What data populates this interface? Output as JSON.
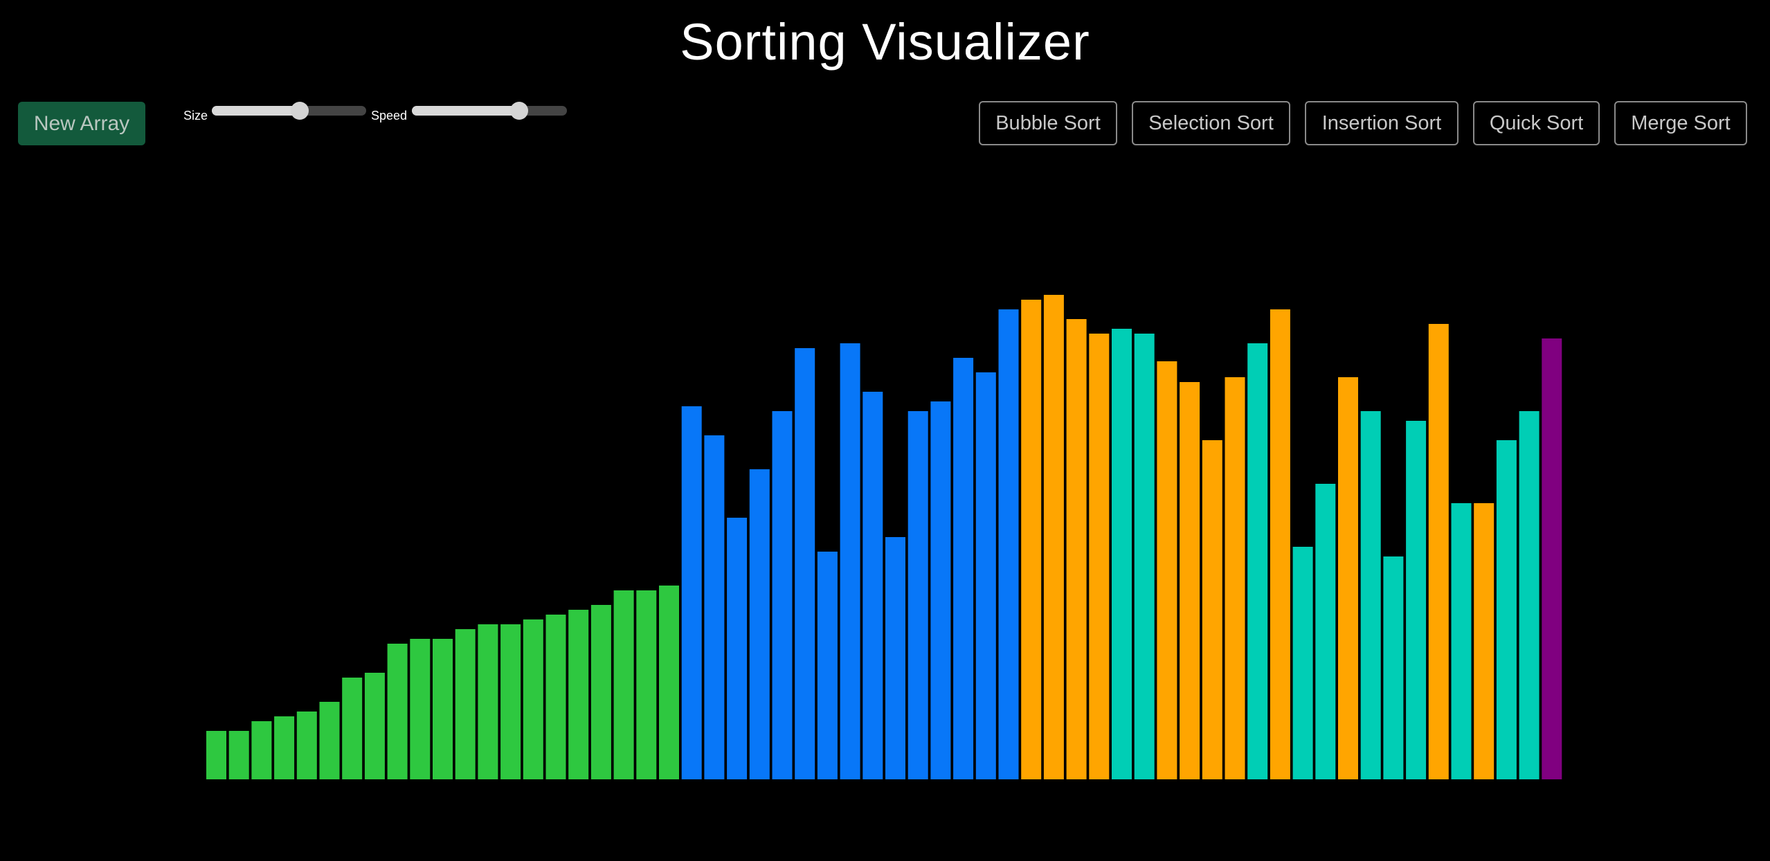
{
  "header": {
    "title": "Sorting Visualizer"
  },
  "controls": {
    "new_array_label": "New Array",
    "size_label": "Size",
    "speed_label": "Speed",
    "size_level": 0.57,
    "speed_level": 0.69
  },
  "algorithms": [
    {
      "label": "Bubble Sort"
    },
    {
      "label": "Selection Sort"
    },
    {
      "label": "Insertion Sort"
    },
    {
      "label": "Quick Sort"
    },
    {
      "label": "Merge Sort"
    }
  ],
  "colors": {
    "sorted": "#2ec840",
    "partition": "#0877f8",
    "compare": "#ffa500",
    "unsorted": "#00ceb5",
    "pivot": "#800080",
    "new_array_bg": "#135a3c"
  },
  "chart_data": {
    "type": "bar",
    "ylim": [
      0,
      710
    ],
    "bars": [
      {
        "v": 70,
        "s": "sorted"
      },
      {
        "v": 70,
        "s": "sorted"
      },
      {
        "v": 84,
        "s": "sorted"
      },
      {
        "v": 91,
        "s": "sorted"
      },
      {
        "v": 98,
        "s": "sorted"
      },
      {
        "v": 112,
        "s": "sorted"
      },
      {
        "v": 147,
        "s": "sorted"
      },
      {
        "v": 154,
        "s": "sorted"
      },
      {
        "v": 196,
        "s": "sorted"
      },
      {
        "v": 203,
        "s": "sorted"
      },
      {
        "v": 203,
        "s": "sorted"
      },
      {
        "v": 217,
        "s": "sorted"
      },
      {
        "v": 224,
        "s": "sorted"
      },
      {
        "v": 224,
        "s": "sorted"
      },
      {
        "v": 231,
        "s": "sorted"
      },
      {
        "v": 238,
        "s": "sorted"
      },
      {
        "v": 245,
        "s": "sorted"
      },
      {
        "v": 252,
        "s": "sorted"
      },
      {
        "v": 273,
        "s": "sorted"
      },
      {
        "v": 273,
        "s": "sorted"
      },
      {
        "v": 280,
        "s": "sorted"
      },
      {
        "v": 539,
        "s": "partition"
      },
      {
        "v": 497,
        "s": "partition"
      },
      {
        "v": 378,
        "s": "partition"
      },
      {
        "v": 448,
        "s": "partition"
      },
      {
        "v": 532,
        "s": "partition"
      },
      {
        "v": 623,
        "s": "partition"
      },
      {
        "v": 329,
        "s": "partition"
      },
      {
        "v": 630,
        "s": "partition"
      },
      {
        "v": 560,
        "s": "partition"
      },
      {
        "v": 350,
        "s": "partition"
      },
      {
        "v": 532,
        "s": "partition"
      },
      {
        "v": 546,
        "s": "partition"
      },
      {
        "v": 609,
        "s": "partition"
      },
      {
        "v": 588,
        "s": "partition"
      },
      {
        "v": 679,
        "s": "partition"
      },
      {
        "v": 693,
        "s": "compare"
      },
      {
        "v": 700,
        "s": "compare"
      },
      {
        "v": 665,
        "s": "compare"
      },
      {
        "v": 644,
        "s": "compare"
      },
      {
        "v": 651,
        "s": "unsorted"
      },
      {
        "v": 644,
        "s": "unsorted"
      },
      {
        "v": 604,
        "s": "compare"
      },
      {
        "v": 574,
        "s": "compare"
      },
      {
        "v": 490,
        "s": "compare"
      },
      {
        "v": 581,
        "s": "compare"
      },
      {
        "v": 630,
        "s": "unsorted"
      },
      {
        "v": 679,
        "s": "compare"
      },
      {
        "v": 336,
        "s": "unsorted"
      },
      {
        "v": 427,
        "s": "unsorted"
      },
      {
        "v": 581,
        "s": "compare"
      },
      {
        "v": 532,
        "s": "unsorted"
      },
      {
        "v": 322,
        "s": "unsorted"
      },
      {
        "v": 518,
        "s": "unsorted"
      },
      {
        "v": 658,
        "s": "compare"
      },
      {
        "v": 399,
        "s": "unsorted"
      },
      {
        "v": 399,
        "s": "compare"
      },
      {
        "v": 490,
        "s": "unsorted"
      },
      {
        "v": 532,
        "s": "unsorted"
      },
      {
        "v": 637,
        "s": "pivot"
      }
    ]
  }
}
